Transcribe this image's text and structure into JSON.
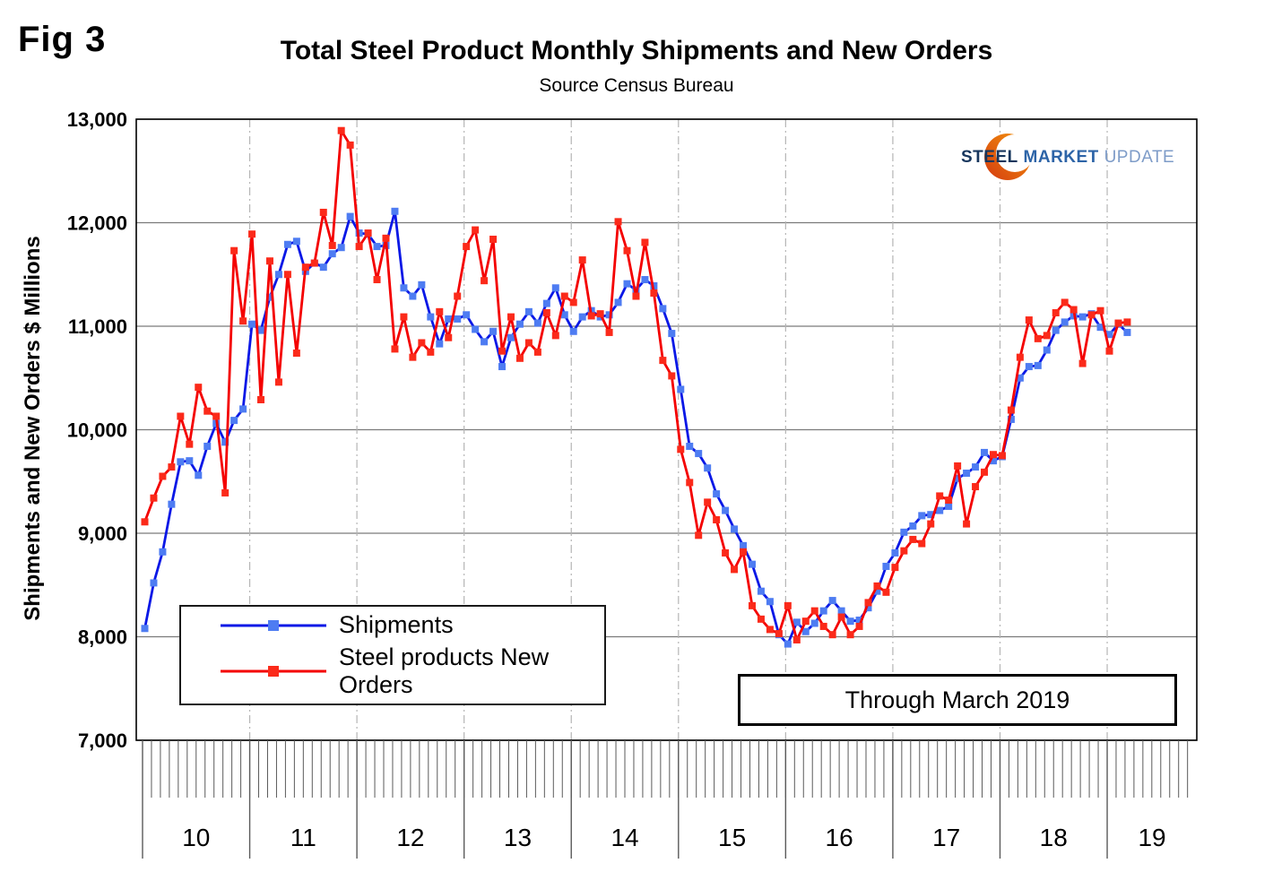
{
  "figure_label": "Fig 3",
  "title": "Total Steel Product Monthly Shipments and New Orders",
  "subtitle": "Source Census Bureau",
  "annotation": "Through March 2019",
  "logo": {
    "steel": "STEEL",
    "market": "MARKET",
    "update": "UPDATE",
    "crescent_color": "#e4581c",
    "crescent_color2": "#f2920f"
  },
  "chart_data": {
    "type": "line",
    "title": "Total Steel Product Monthly Shipments and New Orders",
    "subtitle": "Source Census Bureau",
    "xlabel": "",
    "ylabel": "Shipments and New Orders $ Millions",
    "ylim": [
      7000,
      13000
    ],
    "y_tick_step": 1000,
    "y_tick_labels": [
      "13,000",
      "12,000",
      "11,000",
      "10,000",
      "9,000",
      "8,000",
      "7,000"
    ],
    "x_year_labels": [
      "10",
      "11",
      "12",
      "13",
      "14",
      "15",
      "16",
      "17",
      "18",
      "19"
    ],
    "x_start_month": "2010-01",
    "x_end_month": "2019-03",
    "months_shown": 111,
    "grid": {
      "horizontal": "solid",
      "vertical": "dash-dot at year boundaries"
    },
    "legend_position": "bottom-left inside plot",
    "series": [
      {
        "name": "Shipments",
        "color": "#0a18e6",
        "marker_color": "#4e7cf2",
        "marker": "square",
        "values": [
          8080,
          8520,
          8820,
          9280,
          9690,
          9700,
          9560,
          9840,
          10060,
          9880,
          10090,
          10200,
          11020,
          10960,
          11280,
          11500,
          11790,
          11820,
          11530,
          11610,
          11570,
          11700,
          11760,
          12060,
          11900,
          11890,
          11770,
          11780,
          12110,
          11370,
          11290,
          11400,
          11090,
          10830,
          11070,
          11070,
          11110,
          10970,
          10850,
          10950,
          10610,
          10890,
          11020,
          11140,
          11030,
          11220,
          11370,
          11110,
          10950,
          11090,
          11150,
          11090,
          11110,
          11230,
          11410,
          11350,
          11450,
          11390,
          11170,
          10930,
          10390,
          9840,
          9770,
          9630,
          9380,
          9220,
          9040,
          8880,
          8700,
          8440,
          8340,
          8020,
          7930,
          8140,
          8050,
          8130,
          8250,
          8350,
          8250,
          8150,
          8160,
          8280,
          8440,
          8680,
          8810,
          9010,
          9070,
          9170,
          9180,
          9220,
          9260,
          9530,
          9580,
          9640,
          9780,
          9700,
          9740,
          10100,
          10500,
          10610,
          10620,
          10770,
          10960,
          11040,
          11100,
          11090,
          11120,
          10990,
          10920,
          11020,
          10940
        ]
      },
      {
        "name": "Steel products New Orders",
        "color": "#f40000",
        "marker_color": "#fb2a1a",
        "marker": "square",
        "values": [
          9110,
          9340,
          9550,
          9640,
          10130,
          9860,
          10410,
          10180,
          10130,
          9390,
          11730,
          11050,
          11890,
          10290,
          11630,
          10460,
          11500,
          10740,
          11570,
          11610,
          12100,
          11780,
          12890,
          12750,
          11770,
          11900,
          11450,
          11850,
          10780,
          11090,
          10700,
          10840,
          10750,
          11140,
          10890,
          11290,
          11770,
          11930,
          11440,
          11840,
          10760,
          11090,
          10690,
          10840,
          10750,
          11130,
          10910,
          11290,
          11230,
          11640,
          11100,
          11120,
          10940,
          12010,
          11730,
          11290,
          11810,
          11320,
          10670,
          10520,
          9810,
          9490,
          8980,
          9300,
          9130,
          8810,
          8650,
          8820,
          8300,
          8170,
          8070,
          8030,
          8300,
          7970,
          8150,
          8250,
          8100,
          8020,
          8190,
          8020,
          8100,
          8330,
          8490,
          8430,
          8670,
          8830,
          8940,
          8900,
          9090,
          9360,
          9320,
          9650,
          9090,
          9450,
          9590,
          9760,
          9750,
          10190,
          10700,
          11060,
          10880,
          10910,
          11130,
          11230,
          11160,
          10640,
          11110,
          11150,
          10760,
          11030,
          11040
        ]
      }
    ]
  }
}
